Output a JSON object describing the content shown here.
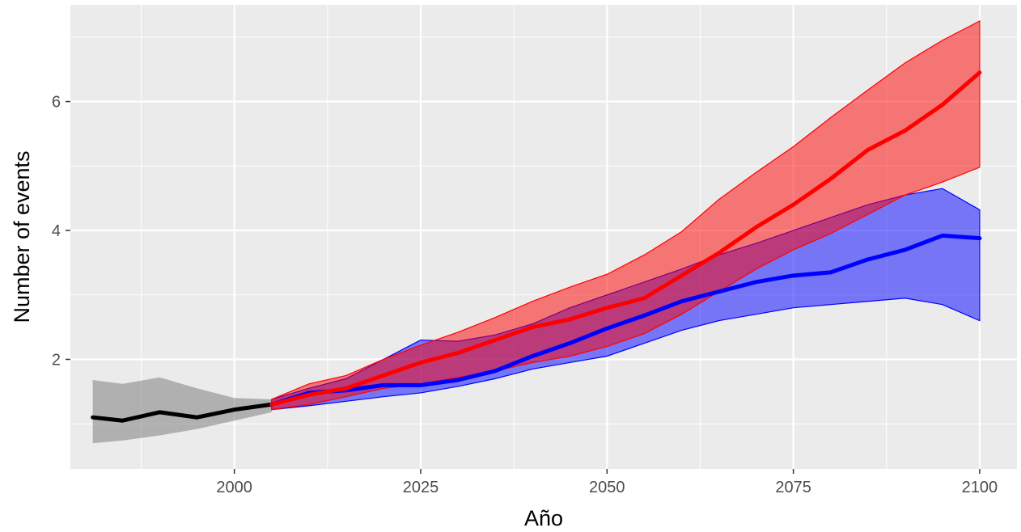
{
  "chart_data": {
    "type": "line",
    "title": "",
    "xlabel": "Año",
    "ylabel": "Number of events",
    "xlim": [
      1978,
      2105
    ],
    "ylim": [
      0.3,
      7.5
    ],
    "x_ticks": [
      2000,
      2025,
      2050,
      2075,
      2100
    ],
    "y_ticks": [
      2,
      4,
      6
    ],
    "y_minor_ticks": [
      1,
      3,
      5,
      7
    ],
    "x_minor_ticks": [
      1987.5,
      2012.5,
      2037.5,
      2062.5,
      2087.5
    ],
    "grid": true,
    "legend": "none",
    "colors": {
      "panel_background": "#ebebeb",
      "grid": "#ffffff",
      "historical": "#000000",
      "historical_band": "#7f7f7f",
      "scenario_blue": "#0000ff",
      "scenario_red": "#ff0000"
    },
    "series": [
      {
        "color": "historical",
        "x": [
          1981,
          1985,
          1990,
          1995,
          2000,
          2005
        ],
        "y": [
          1.1,
          1.05,
          1.18,
          1.1,
          1.22,
          1.3
        ],
        "lower": [
          0.7,
          0.74,
          0.82,
          0.92,
          1.05,
          1.18
        ],
        "upper": [
          1.68,
          1.62,
          1.72,
          1.55,
          1.4,
          1.38
        ]
      },
      {
        "color": "scenario_blue",
        "x": [
          2005,
          2010,
          2015,
          2020,
          2025,
          2030,
          2035,
          2040,
          2045,
          2050,
          2055,
          2060,
          2065,
          2070,
          2075,
          2080,
          2085,
          2090,
          2095,
          2100
        ],
        "y": [
          1.3,
          1.48,
          1.52,
          1.6,
          1.6,
          1.68,
          1.82,
          2.05,
          2.25,
          2.48,
          2.68,
          2.9,
          3.05,
          3.2,
          3.3,
          3.35,
          3.55,
          3.7,
          3.92,
          3.88
        ],
        "lower": [
          1.22,
          1.28,
          1.35,
          1.42,
          1.48,
          1.58,
          1.7,
          1.85,
          1.95,
          2.05,
          2.25,
          2.45,
          2.6,
          2.7,
          2.8,
          2.85,
          2.9,
          2.95,
          2.85,
          2.6
        ],
        "upper": [
          1.38,
          1.55,
          1.7,
          2.0,
          2.3,
          2.28,
          2.38,
          2.55,
          2.8,
          3.0,
          3.2,
          3.4,
          3.62,
          3.8,
          4.0,
          4.2,
          4.4,
          4.55,
          4.65,
          4.32
        ]
      },
      {
        "color": "scenario_red",
        "x": [
          2005,
          2010,
          2015,
          2020,
          2025,
          2030,
          2035,
          2040,
          2045,
          2050,
          2055,
          2060,
          2065,
          2070,
          2075,
          2080,
          2085,
          2090,
          2095,
          2100
        ],
        "y": [
          1.3,
          1.45,
          1.55,
          1.75,
          1.95,
          2.1,
          2.3,
          2.5,
          2.62,
          2.8,
          2.95,
          3.3,
          3.65,
          4.05,
          4.4,
          4.8,
          5.25,
          5.55,
          5.95,
          6.45
        ],
        "lower": [
          1.22,
          1.3,
          1.42,
          1.55,
          1.62,
          1.72,
          1.82,
          1.95,
          2.05,
          2.2,
          2.4,
          2.7,
          3.05,
          3.4,
          3.7,
          3.95,
          4.25,
          4.55,
          4.75,
          4.98
        ],
        "upper": [
          1.38,
          1.62,
          1.75,
          2.0,
          2.22,
          2.42,
          2.65,
          2.9,
          3.12,
          3.32,
          3.62,
          3.98,
          4.48,
          4.9,
          5.3,
          5.75,
          6.18,
          6.6,
          6.95,
          7.25
        ]
      }
    ]
  }
}
